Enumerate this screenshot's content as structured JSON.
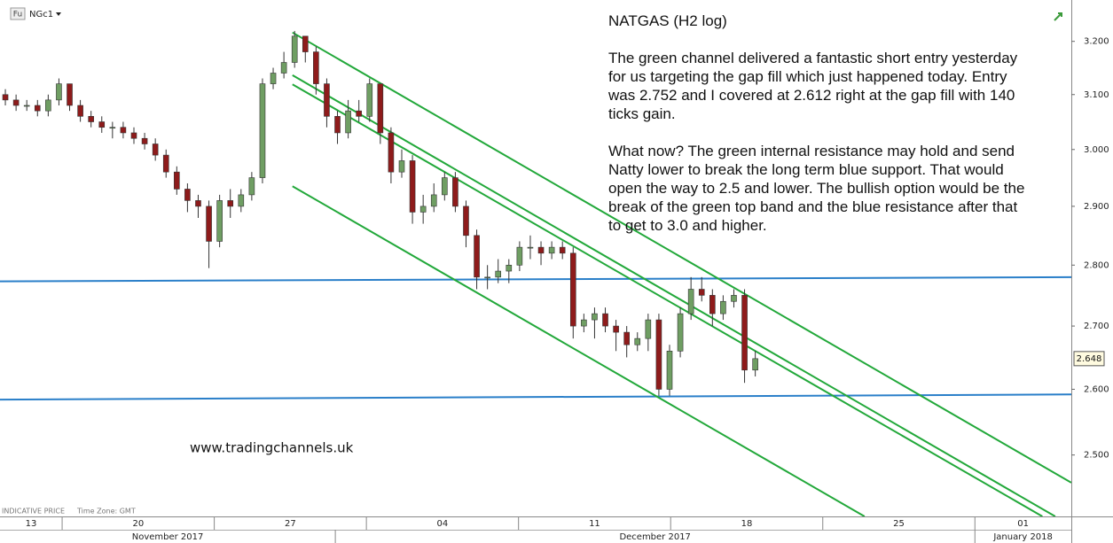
{
  "header": {
    "badge": "Fu",
    "symbol": "NGc1"
  },
  "footer": {
    "price_note": "INDICATIVE PRICE",
    "time_zone": "Time Zone: GMT"
  },
  "watermark": "www.tradingchannels.uk",
  "chart_data": {
    "type": "candlestick",
    "title": "NATGAS (H2 log)",
    "text": [
      [
        "The green channel delivered a fantastic short entry yesterday",
        "for us targeting the gap fill which just happened today. Entry",
        "was 2.752 and I covered at 2.612 right at the gap fill with 140",
        "ticks gain."
      ],
      [
        "What now? The green internal resistance may hold and send",
        "Natty lower to break the long term blue support. That would",
        "open the way to 2.5 and lower. The bullish option would be the",
        "break of the green top band and the blue resistance after that",
        "to get to 3.0 and higher."
      ]
    ],
    "log_scale": true,
    "ylim": [
      2.41,
      3.28
    ],
    "yticks": [
      {
        "value": 2.5,
        "label": "2.500"
      },
      {
        "value": 2.6,
        "label": "2.600"
      },
      {
        "value": 2.7,
        "label": "2.700"
      },
      {
        "value": 2.8,
        "label": "2.800"
      },
      {
        "value": 2.9,
        "label": "2.900"
      },
      {
        "value": 3.0,
        "label": "3.000"
      },
      {
        "value": 3.1,
        "label": "3.100"
      },
      {
        "value": 3.2,
        "label": "3.200"
      }
    ],
    "xlim": [
      0,
      100
    ],
    "xticks": [
      {
        "value": -8.4,
        "label": "13"
      },
      {
        "value": 5.8,
        "label": "20"
      },
      {
        "value": 20,
        "label": "27"
      },
      {
        "value": 34.2,
        "label": "04"
      },
      {
        "value": 48.4,
        "label": "11"
      },
      {
        "value": 62.6,
        "label": "18"
      },
      {
        "value": 76.8,
        "label": "25"
      },
      {
        "value": 91,
        "label": "01"
      }
    ],
    "periods": [
      {
        "label": "November 2017",
        "start": 0,
        "end": 31.3
      },
      {
        "label": "December 2017",
        "start": 31.3,
        "end": 91
      },
      {
        "label": "January 2018",
        "start": 91,
        "end": 100
      }
    ],
    "up_color": "#6f9e63",
    "down_color": "#8e1b1b",
    "candles": {
      "open": [
        3.1,
        3.09,
        3.08,
        3.08,
        3.07,
        3.09,
        3.12,
        3.08,
        3.06,
        3.05,
        3.04,
        3.04,
        3.03,
        3.02,
        3.01,
        2.99,
        2.96,
        2.93,
        2.91,
        2.9,
        2.84,
        2.91,
        2.9,
        2.92,
        2.95,
        3.12,
        3.14,
        3.16,
        3.21,
        3.18,
        3.12,
        3.06,
        3.03,
        3.07,
        3.06,
        3.12,
        3.03,
        2.96,
        2.98,
        2.89,
        2.9,
        2.92,
        2.95,
        2.9,
        2.85,
        2.78,
        2.78,
        2.79,
        2.8,
        2.83,
        2.83,
        2.82,
        2.83,
        2.82,
        2.7,
        2.71,
        2.72,
        2.7,
        2.69,
        2.67,
        2.68,
        2.71,
        2.6,
        2.66,
        2.72,
        2.76,
        2.75,
        2.72,
        2.74,
        2.75,
        2.63
      ],
      "high": [
        3.11,
        3.1,
        3.09,
        3.09,
        3.1,
        3.13,
        3.12,
        3.09,
        3.07,
        3.06,
        3.05,
        3.05,
        3.04,
        3.03,
        3.02,
        3.0,
        2.97,
        2.94,
        2.92,
        2.91,
        2.92,
        2.93,
        2.93,
        2.96,
        3.13,
        3.15,
        3.18,
        3.22,
        3.21,
        3.19,
        3.13,
        3.07,
        3.09,
        3.09,
        3.13,
        3.12,
        3.04,
        3.0,
        2.99,
        2.92,
        2.94,
        2.96,
        2.96,
        2.91,
        2.86,
        2.8,
        2.81,
        2.81,
        2.84,
        2.85,
        2.84,
        2.84,
        2.84,
        2.83,
        2.72,
        2.73,
        2.73,
        2.71,
        2.7,
        2.69,
        2.72,
        2.72,
        2.67,
        2.73,
        2.78,
        2.78,
        2.76,
        2.75,
        2.76,
        2.76,
        2.66
      ],
      "low": [
        3.08,
        3.07,
        3.07,
        3.06,
        3.06,
        3.08,
        3.07,
        3.05,
        3.04,
        3.03,
        3.02,
        3.02,
        3.01,
        3.0,
        2.98,
        2.95,
        2.92,
        2.89,
        2.88,
        2.795,
        2.83,
        2.88,
        2.89,
        2.91,
        2.94,
        3.11,
        3.13,
        3.15,
        3.16,
        3.1,
        3.04,
        3.01,
        3.02,
        3.05,
        3.05,
        3.01,
        2.94,
        2.95,
        2.87,
        2.87,
        2.89,
        2.91,
        2.89,
        2.83,
        2.76,
        2.76,
        2.77,
        2.77,
        2.79,
        2.81,
        2.8,
        2.81,
        2.81,
        2.68,
        2.69,
        2.68,
        2.69,
        2.66,
        2.65,
        2.66,
        2.66,
        2.59,
        2.59,
        2.65,
        2.71,
        2.74,
        2.7,
        2.71,
        2.73,
        2.61,
        2.62
      ],
      "close": [
        3.09,
        3.08,
        3.08,
        3.07,
        3.09,
        3.12,
        3.08,
        3.06,
        3.05,
        3.04,
        3.04,
        3.03,
        3.02,
        3.01,
        2.99,
        2.96,
        2.93,
        2.91,
        2.9,
        2.84,
        2.91,
        2.9,
        2.92,
        2.95,
        3.12,
        3.14,
        3.16,
        3.21,
        3.18,
        3.12,
        3.06,
        3.03,
        3.07,
        3.06,
        3.12,
        3.03,
        2.96,
        2.98,
        2.89,
        2.9,
        2.92,
        2.95,
        2.9,
        2.85,
        2.78,
        2.78,
        2.79,
        2.8,
        2.83,
        2.83,
        2.82,
        2.83,
        2.82,
        2.7,
        2.71,
        2.72,
        2.7,
        2.69,
        2.67,
        2.68,
        2.71,
        2.6,
        2.66,
        2.72,
        2.76,
        2.75,
        2.72,
        2.74,
        2.75,
        2.63,
        2.648
      ]
    },
    "trendlines": [
      {
        "color": "#2a7fc9",
        "points": [
          [
            0,
            2.773
          ],
          [
            100,
            2.78
          ]
        ]
      },
      {
        "color": "#2a7fc9",
        "points": [
          [
            0,
            2.584
          ],
          [
            100,
            2.592
          ]
        ]
      },
      {
        "color": "#22a83a",
        "points": [
          [
            27.3,
            3.217
          ],
          [
            100,
            2.459
          ]
        ]
      },
      {
        "color": "#22a83a",
        "points": [
          [
            27.3,
            3.136
          ],
          [
            98.5,
            2.41
          ]
        ]
      },
      {
        "color": "#22a83a",
        "points": [
          [
            27.3,
            3.119
          ],
          [
            97.3,
            2.41
          ]
        ]
      },
      {
        "color": "#22a83a",
        "points": [
          [
            27.3,
            2.935
          ],
          [
            80.7,
            2.41
          ]
        ]
      }
    ]
  }
}
